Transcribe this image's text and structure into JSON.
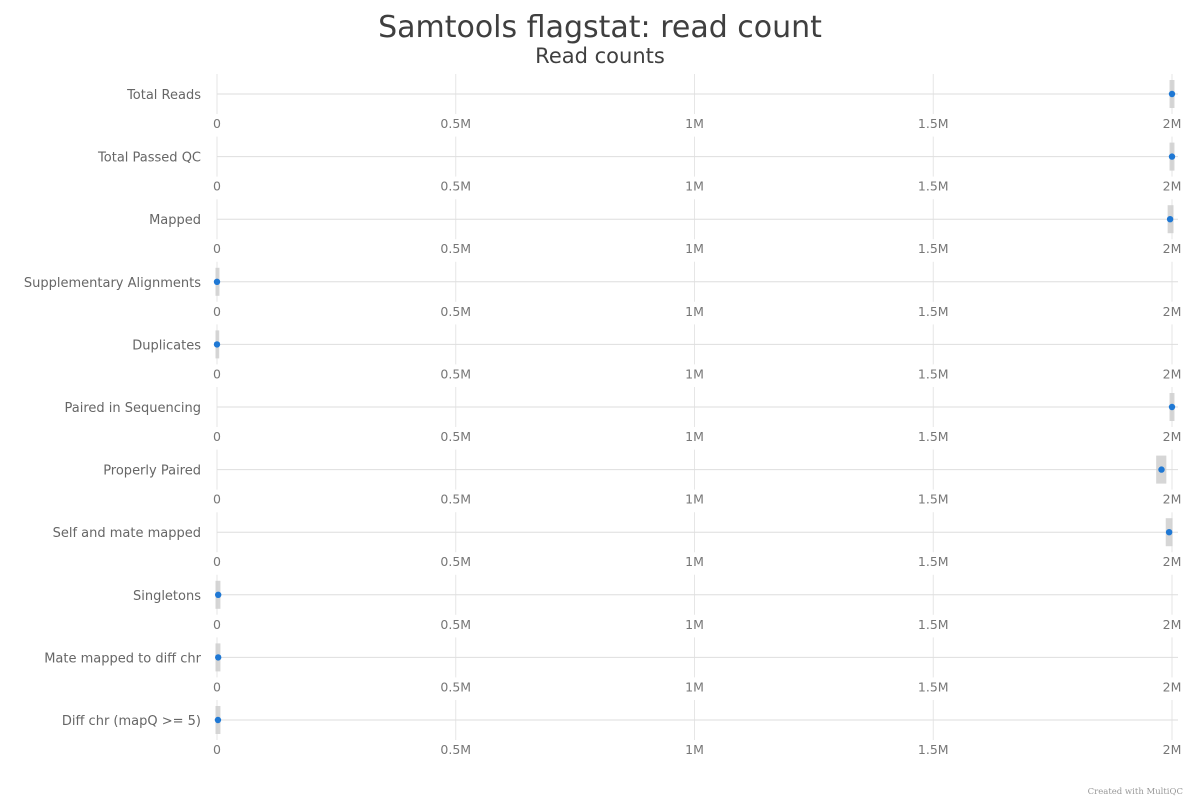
{
  "chart_data": {
    "type": "scatter",
    "title": "Samtools flagstat: read count",
    "subtitle": "Read counts",
    "xlim": [
      0,
      2000000
    ],
    "tick_values": [
      0,
      500000,
      1000000,
      1500000,
      2000000
    ],
    "tick_labels": [
      "0",
      "0.5M",
      "1M",
      "1.5M",
      "2M"
    ],
    "grid": true,
    "categories": [
      "Total Reads",
      "Total Passed QC",
      "Mapped",
      "Supplementary Alignments",
      "Duplicates",
      "Paired in Sequencing",
      "Properly Paired",
      "Self and mate mapped",
      "Singletons",
      "Mate mapped to diff chr",
      "Diff chr (mapQ >= 5)"
    ],
    "values": [
      2000000,
      2000000,
      1996000,
      0,
      0,
      2000000,
      1978000,
      1994000,
      2500,
      2500,
      2000
    ],
    "ranges": [
      [
        1998000,
        2002000
      ],
      [
        1998000,
        2002000
      ],
      [
        1994000,
        2000000
      ],
      [
        0,
        2000
      ],
      [
        0,
        1500
      ],
      [
        1998000,
        2002000
      ],
      [
        1970000,
        1985000
      ],
      [
        1990000,
        1998000
      ],
      [
        0,
        4000
      ],
      [
        0,
        4000
      ],
      [
        0,
        4000
      ]
    ],
    "point_color": "#1f78d4",
    "range_color": "#cccccc"
  },
  "footer": {
    "credit": "Created with MultiQC"
  }
}
